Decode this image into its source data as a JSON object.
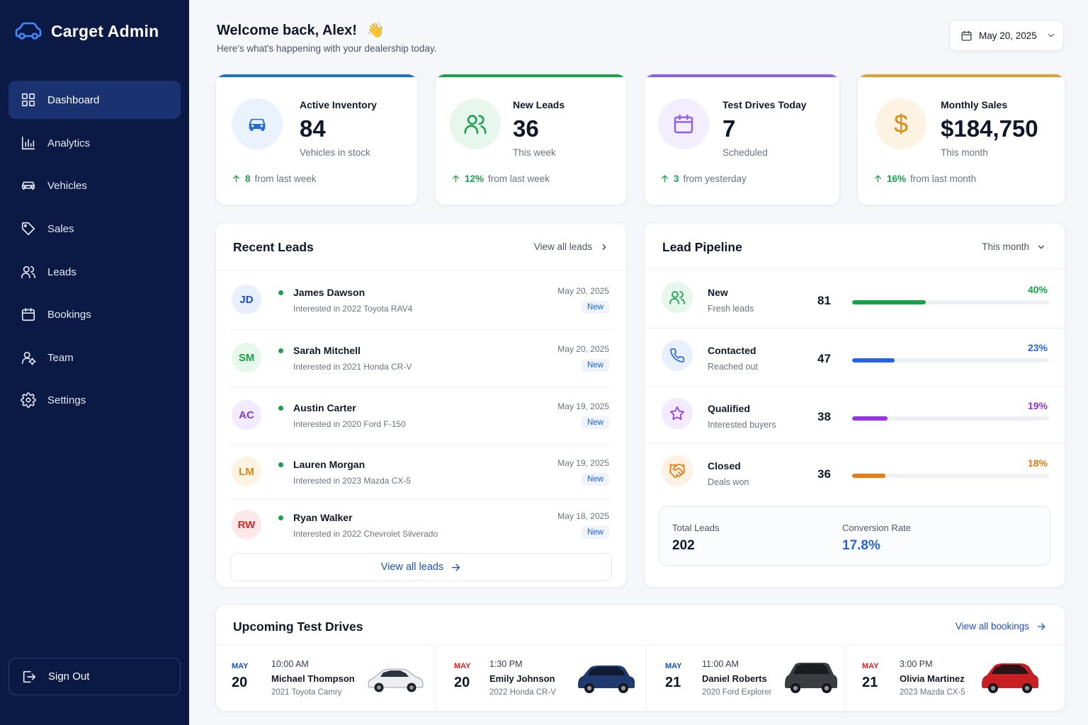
{
  "brand": {
    "name": "Carget Admin",
    "icon": "car-outline-icon"
  },
  "sidebar": {
    "items": [
      {
        "label": "Dashboard",
        "icon": "grid-icon",
        "active": true
      },
      {
        "label": "Analytics",
        "icon": "bar-chart-icon"
      },
      {
        "label": "Vehicles",
        "icon": "car-icon"
      },
      {
        "label": "Sales",
        "icon": "tag-icon"
      },
      {
        "label": "Leads",
        "icon": "users-icon"
      },
      {
        "label": "Bookings",
        "icon": "calendar-icon"
      },
      {
        "label": "Team",
        "icon": "team-icon"
      },
      {
        "label": "Settings",
        "icon": "gear-icon"
      }
    ],
    "signout": "Sign Out"
  },
  "header": {
    "welcome": "Welcome back, Alex!",
    "emoji": "👋",
    "subtitle": "Here's what's happening with your dealership today.",
    "date": "May 20, 2025"
  },
  "stats": [
    {
      "label": "Active Inventory",
      "value": "84",
      "sub": "Vehicles in stock",
      "trend_value": "8",
      "trend_text": "from last week",
      "color": "#1d6fd8"
    },
    {
      "label": "New Leads",
      "value": "36",
      "sub": "This week",
      "trend_value": "12%",
      "trend_text": "from last week",
      "color": "#16a34a"
    },
    {
      "label": "Test Drives Today",
      "value": "7",
      "sub": "Scheduled",
      "trend_value": "3",
      "trend_text": "from yesterday",
      "color": "#8b5cf6"
    },
    {
      "label": "Monthly Sales",
      "value": "$184,750",
      "sub": "This month",
      "trend_value": "16%",
      "trend_text": "from last month",
      "color": "#e0a030"
    }
  ],
  "recent_leads": {
    "title": "Recent Leads",
    "view_all_top": "View all leads",
    "view_all_bottom": "View all leads",
    "badge": "New",
    "rows": [
      {
        "initials": "JD",
        "name": "James Dawson",
        "interest": "Interested in 2022 Toyota RAV4",
        "date": "May 20, 2025",
        "bg": "#e8f0fe",
        "fg": "#1d4ed8"
      },
      {
        "initials": "SM",
        "name": "Sarah Mitchell",
        "interest": "Interested in 2021 Honda CR-V",
        "date": "May 20, 2025",
        "bg": "#e6f7ec",
        "fg": "#16a34a"
      },
      {
        "initials": "AC",
        "name": "Austin Carter",
        "interest": "Interested in 2020 Ford F-150",
        "date": "May 19, 2025",
        "bg": "#f1ebfd",
        "fg": "#7c3aed"
      },
      {
        "initials": "LM",
        "name": "Lauren Morgan",
        "interest": "Interested in 2023 Mazda CX-5",
        "date": "May 19, 2025",
        "bg": "#fdf3e1",
        "fg": "#d08a12"
      },
      {
        "initials": "RW",
        "name": "Ryan Walker",
        "interest": "Interested in 2022 Chevrolet Silverado",
        "date": "May 18, 2025",
        "bg": "#fde8ea",
        "fg": "#dc2626"
      }
    ]
  },
  "pipeline": {
    "title": "Lead Pipeline",
    "filter": "This month",
    "rows": [
      {
        "name": "New",
        "sub": "Fresh leads",
        "count": "81",
        "pct": "40%",
        "fraction": 0.4,
        "color": "#16a34a",
        "bg": "#e6f7ec",
        "icon": "users-icon"
      },
      {
        "name": "Contacted",
        "sub": "Reached out",
        "count": "47",
        "pct": "23%",
        "fraction": 0.23,
        "color": "#2563eb",
        "bg": "#e8f0fe",
        "icon": "phone-icon"
      },
      {
        "name": "Qualified",
        "sub": "Interested buyers",
        "count": "38",
        "pct": "19%",
        "fraction": 0.19,
        "color": "#9333ea",
        "bg": "#f1ebfd",
        "icon": "star-icon"
      },
      {
        "name": "Closed",
        "sub": "Deals won",
        "count": "36",
        "pct": "18%",
        "fraction": 0.18,
        "color": "#ea7a12",
        "bg": "#fdf1e3",
        "icon": "handshake-icon"
      }
    ],
    "total_label": "Total Leads",
    "total_value": "202",
    "conversion_label": "Conversion Rate",
    "conversion_value": "17.8%"
  },
  "test_drives": {
    "title": "Upcoming Test Drives",
    "view_all": "View all bookings",
    "items": [
      {
        "month": "MAY",
        "day": "20",
        "time": "10:00 AM",
        "name": "Michael Thompson",
        "car": "2021 Toyota Camry",
        "car_color": "#f2f2f2",
        "month_color": "#1d4ed8"
      },
      {
        "month": "MAY",
        "day": "20",
        "time": "1:30 PM",
        "name": "Emily Johnson",
        "car": "2022 Honda CR-V",
        "car_color": "#1f3a6e",
        "month_color": "#dc2626"
      },
      {
        "month": "MAY",
        "day": "21",
        "time": "11:00 AM",
        "name": "Daniel Roberts",
        "car": "2020 Ford Explorer",
        "car_color": "#3a3d42",
        "month_color": "#1d4ed8"
      },
      {
        "month": "MAY",
        "day": "21",
        "time": "3:00 PM",
        "name": "Olivia Martinez",
        "car": "2023 Mazda CX-5",
        "car_color": "#c81e24",
        "month_color": "#dc2626"
      }
    ]
  }
}
